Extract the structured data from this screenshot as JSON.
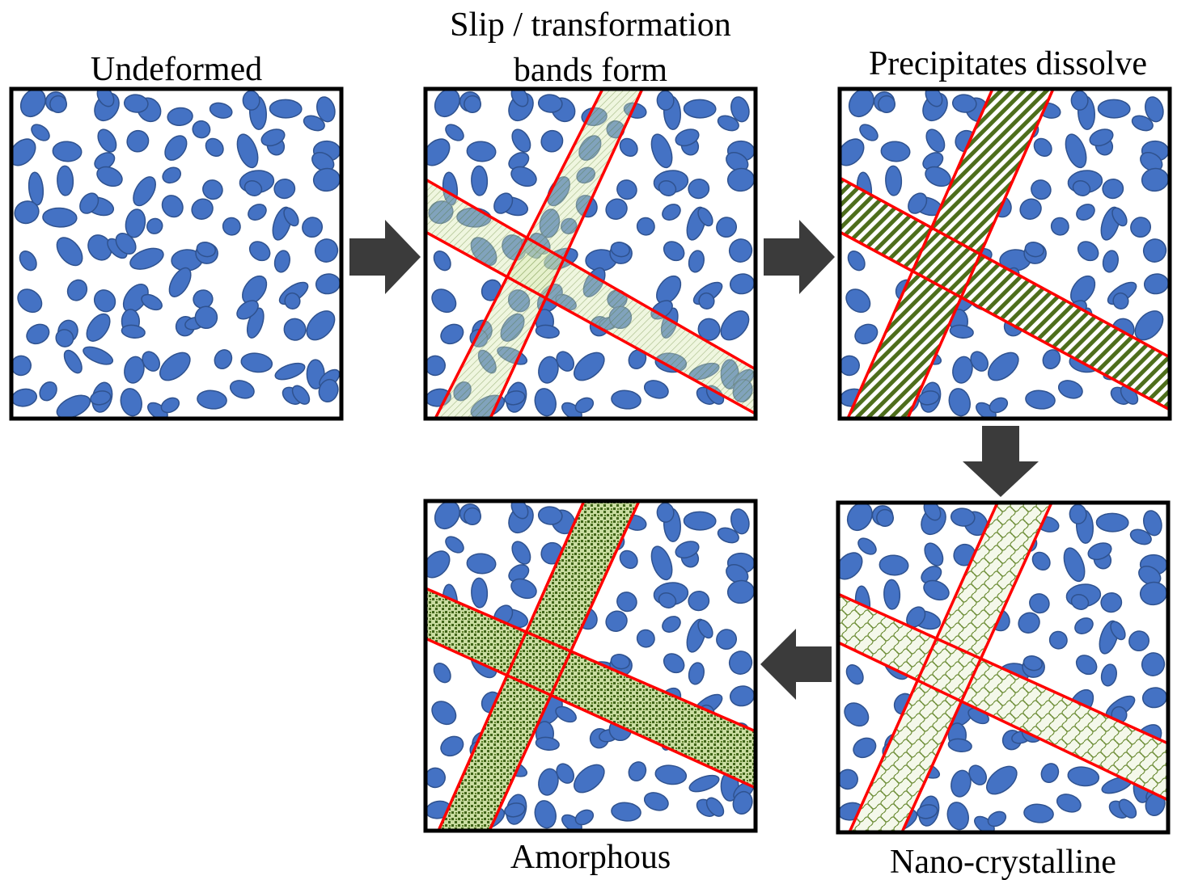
{
  "panels": [
    {
      "label_lines": [
        "Undeformed"
      ]
    },
    {
      "label_lines": [
        "Slip / transformation",
        "bands form"
      ]
    },
    {
      "label_lines": [
        "Precipitates dissolve"
      ]
    },
    {
      "label_lines": [
        "Nano-crystalline"
      ]
    },
    {
      "label_lines": [
        "Amorphous"
      ]
    }
  ]
}
